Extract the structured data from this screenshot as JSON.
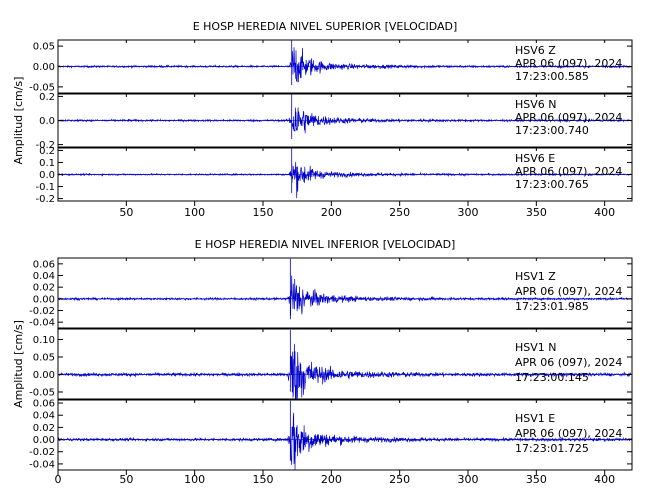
{
  "chart_data": [
    {
      "type": "line",
      "title": "E HOSP HEREDIA NIVEL SUPERIOR [VELOCIDAD]",
      "ylabel": "Amplitud [cm/s]",
      "xlabel": "",
      "xlim": [
        0,
        420
      ],
      "x_ticks": [
        50,
        100,
        150,
        200,
        250,
        300,
        350,
        400
      ],
      "traces": [
        {
          "name": "HSV6   Z",
          "date": "APR 06 (097), 2024",
          "time": "17:23:00.585",
          "ylim": [
            -0.065,
            0.065
          ],
          "y_ticks": [
            0.05,
            0.0,
            -0.05
          ],
          "y_tick_labels": [
            "0.05",
            "0.00",
            "-0.05"
          ],
          "onset_s": 171,
          "peak_amplitude": 0.062,
          "color": "#0000cc"
        },
        {
          "name": "HSV6   N",
          "date": "APR 06 (097), 2024",
          "time": "17:23:00.740",
          "ylim": [
            -0.22,
            0.22
          ],
          "y_ticks": [
            0.2,
            0.0,
            -0.2
          ],
          "y_tick_labels": [
            "0.2",
            "0.0",
            "-0.2"
          ],
          "onset_s": 171,
          "peak_amplitude": 0.21,
          "color": "#0000cc"
        },
        {
          "name": "HSV6   E",
          "date": "APR 06 (097), 2024",
          "time": "17:23:00.765",
          "ylim": [
            -0.22,
            0.22
          ],
          "y_ticks": [
            0.2,
            0.1,
            0.0,
            -0.1,
            -0.2
          ],
          "y_tick_labels": [
            "0.2",
            "0.1",
            "0.0",
            "-0.1",
            "-0.2"
          ],
          "onset_s": 171,
          "peak_amplitude": 0.17,
          "color": "#0000cc"
        }
      ]
    },
    {
      "type": "line",
      "title": "E HOSP HEREDIA NIVEL INFERIOR [VELOCIDAD]",
      "ylabel": "Amplitud [cm/s]",
      "xlabel": "",
      "xlim": [
        0,
        420
      ],
      "x_ticks": [
        0,
        50,
        100,
        150,
        200,
        250,
        300,
        350,
        400
      ],
      "traces": [
        {
          "name": "HSV1   Z",
          "date": "APR 06 (097), 2024",
          "time": "17:23:01.985",
          "ylim": [
            -0.05,
            0.07
          ],
          "y_ticks": [
            0.06,
            0.04,
            0.02,
            0.0,
            -0.02,
            -0.04
          ],
          "y_tick_labels": [
            "0.06",
            "0.04",
            "0.02",
            "0.00",
            "-0.02",
            "-0.04"
          ],
          "onset_s": 170,
          "peak_amplitude": 0.05,
          "color": "#0000cc"
        },
        {
          "name": "HSV1   N",
          "date": "APR 06 (097), 2024",
          "time": "17:23:00.145",
          "ylim": [
            -0.07,
            0.13
          ],
          "y_ticks": [
            0.1,
            0.05,
            0.0,
            -0.05
          ],
          "y_tick_labels": [
            "0.10",
            "0.05",
            "0.00",
            "-0.05"
          ],
          "onset_s": 170,
          "peak_amplitude": 0.12,
          "color": "#0000cc"
        },
        {
          "name": "HSV1   E",
          "date": "APR 06 (097), 2024",
          "time": "17:23:01.725",
          "ylim": [
            -0.05,
            0.065
          ],
          "y_ticks": [
            0.06,
            0.04,
            0.02,
            0.0,
            -0.02,
            -0.04
          ],
          "y_tick_labels": [
            "0.06",
            "0.04",
            "0.02",
            "0.00",
            "-0.02",
            "-0.04"
          ],
          "onset_s": 170,
          "peak_amplitude": 0.06,
          "color": "#0000cc"
        }
      ]
    }
  ]
}
